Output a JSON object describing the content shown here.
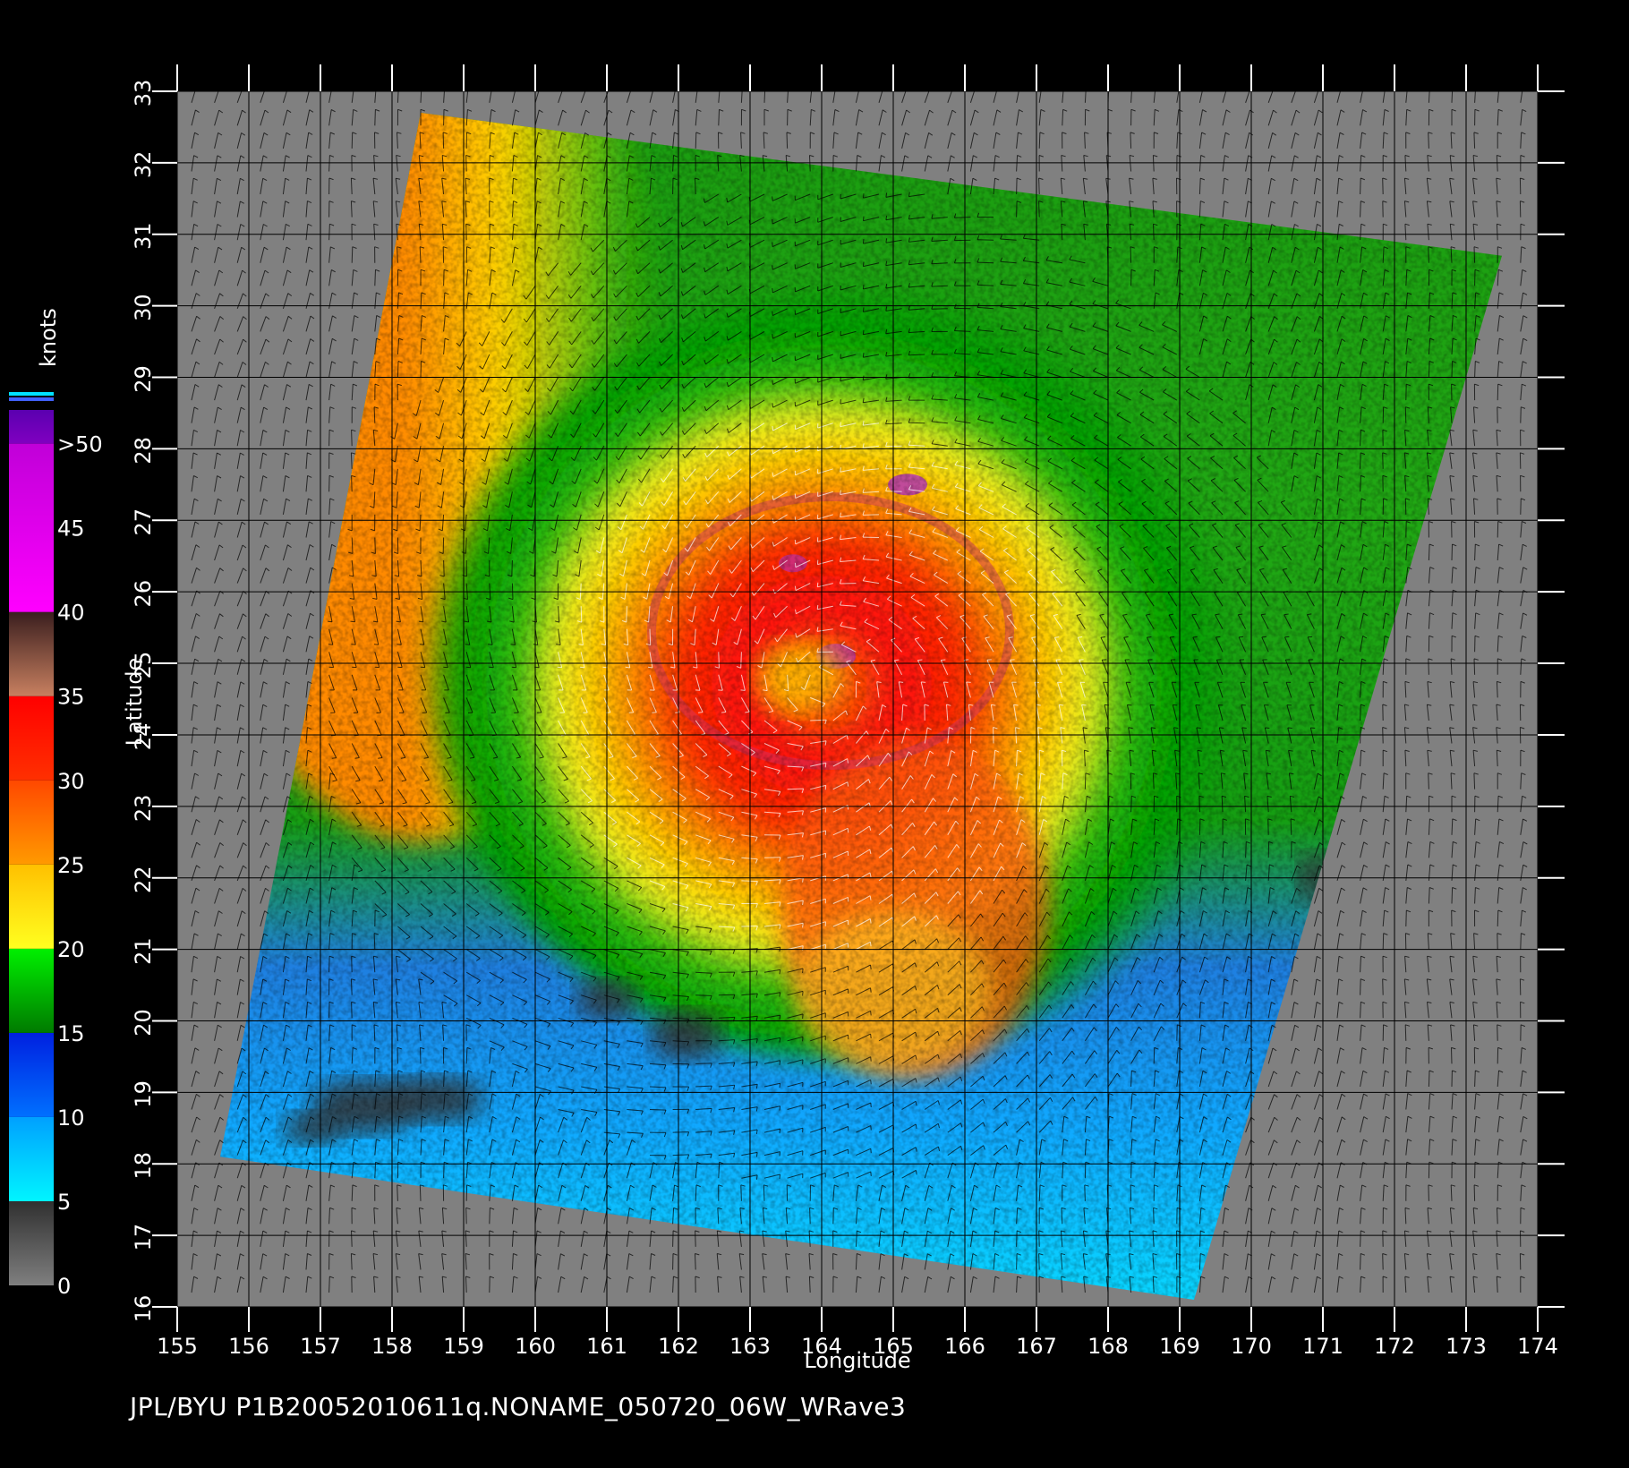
{
  "map": {
    "lon_ticks": [
      "155",
      "156",
      "157",
      "158",
      "159",
      "160",
      "161",
      "162",
      "163",
      "164",
      "165",
      "166",
      "167",
      "168",
      "169",
      "170",
      "171",
      "172",
      "173",
      "174"
    ],
    "lat_ticks": [
      "16",
      "17",
      "18",
      "19",
      "20",
      "21",
      "22",
      "23",
      "24",
      "25",
      "26",
      "27",
      "28",
      "29",
      "30",
      "31",
      "32",
      "33"
    ],
    "xlabel": "Longitude",
    "ylabel": "Latitude",
    "lon_range": [
      155,
      174
    ],
    "lat_range": [
      16,
      33
    ],
    "swath_corners_lonlat": [
      [
        158.4,
        32.7
      ],
      [
        173.5,
        30.7
      ],
      [
        169.2,
        16.1
      ],
      [
        155.6,
        18.1
      ]
    ],
    "storm_center_lonlat": [
      164.0,
      24.7
    ],
    "background_color": "#808080",
    "grid": true
  },
  "legend": {
    "title": "knots",
    "labels": [
      ">50",
      "45",
      "40",
      "35",
      "30",
      "25",
      "20",
      "15",
      "10",
      "5",
      "0"
    ],
    "bands": [
      {
        "from": 0,
        "to": 5,
        "colors": [
          "#7f7f7f",
          "#303030"
        ]
      },
      {
        "from": 5,
        "to": 10,
        "colors": [
          "#00f5ff",
          "#00a0ff"
        ]
      },
      {
        "from": 10,
        "to": 15,
        "colors": [
          "#0070ff",
          "#0020e0"
        ]
      },
      {
        "from": 15,
        "to": 20,
        "colors": [
          "#007a00",
          "#00f000"
        ]
      },
      {
        "from": 20,
        "to": 25,
        "colors": [
          "#ffff20",
          "#ffc000"
        ]
      },
      {
        "from": 25,
        "to": 30,
        "colors": [
          "#ff9a00",
          "#ff4800"
        ]
      },
      {
        "from": 30,
        "to": 35,
        "colors": [
          "#ff3000",
          "#ff0000"
        ]
      },
      {
        "from": 35,
        "to": 40,
        "colors": [
          "#c88060",
          "#3a1e1e"
        ]
      },
      {
        "from": 40,
        "to": 50,
        "colors": [
          "#ff00ff",
          "#c000d8"
        ]
      },
      {
        "from": 50,
        "to": 55,
        "colors": [
          "#8000c0",
          "#5a00b0"
        ]
      }
    ]
  },
  "footer": {
    "text": "JPL/BYU  P1B20052010611q.NONAME_050720_06W_WRave3"
  }
}
